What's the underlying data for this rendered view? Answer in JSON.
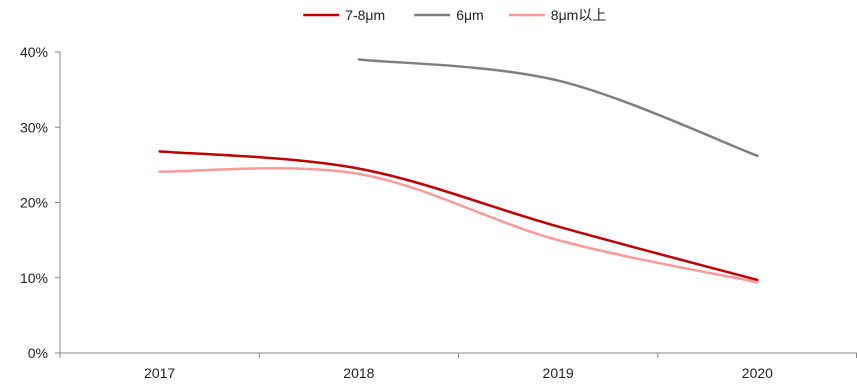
{
  "chart_data": {
    "type": "line",
    "title": "",
    "xlabel": "",
    "ylabel": "",
    "categories": [
      "2017",
      "2018",
      "2019",
      "2020"
    ],
    "ylim": [
      0,
      40
    ],
    "yticks": [
      0,
      10,
      20,
      30,
      40
    ],
    "ytick_labels": [
      "0%",
      "10%",
      "20%",
      "30%",
      "40%"
    ],
    "grid": false,
    "smooth": true,
    "legend_position": "top-center",
    "series": [
      {
        "name": "7-8μm",
        "color": "#c00000",
        "values": [
          26.8,
          24.5,
          16.8,
          9.7
        ]
      },
      {
        "name": "6μm",
        "color": "#7f7f7f",
        "values": [
          null,
          39.0,
          36.2,
          26.2
        ]
      },
      {
        "name": "8μm以上",
        "color": "#ff9999",
        "values": [
          24.1,
          23.8,
          15.0,
          9.4
        ]
      }
    ]
  }
}
